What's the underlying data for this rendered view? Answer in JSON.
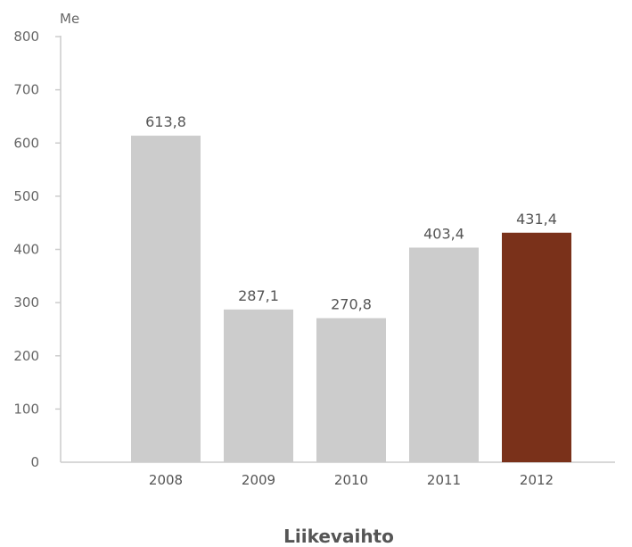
{
  "chart_data": {
    "type": "bar",
    "title": "Liikevaihto",
    "unit_label": "Me",
    "categories": [
      "2008",
      "2009",
      "2010",
      "2011",
      "2012"
    ],
    "values": [
      613.8,
      287.1,
      270.8,
      403.4,
      431.4
    ],
    "value_labels": [
      "613,8",
      "287,1",
      "270,8",
      "403,4",
      "431,4"
    ],
    "y_ticks": [
      0,
      100,
      200,
      300,
      400,
      500,
      600,
      700,
      800
    ],
    "ylim": [
      0,
      800
    ],
    "grid": false,
    "legend": "none",
    "colors": {
      "default_bar": "#cccccc",
      "highlight_bar": "#7a311a",
      "axis": "#cccccc"
    },
    "highlight_index": 4
  }
}
